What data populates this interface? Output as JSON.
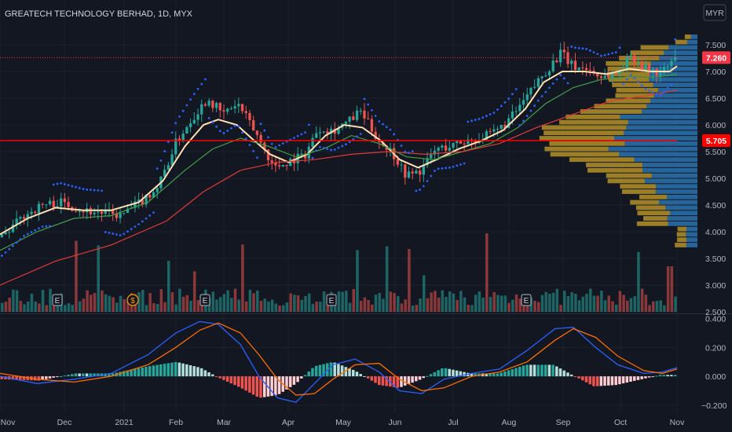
{
  "header": {
    "symbol_title": "GREATECH TECHNOLOGY BERHAD, 1D, MYX",
    "currency": "MYR",
    "gear_icon": "gear-icon"
  },
  "colors": {
    "background": "#131722",
    "grid": "#1e222d",
    "text": "#b2b5be",
    "up": "#26a69a",
    "down": "#ef5350",
    "ma_fast": "#ffe0b2",
    "ma_mid": "#43a047",
    "ma_slow": "#e53935",
    "psar": "#2962ff",
    "vp_up": "#2d7fc1",
    "vp_down": "#c9a227",
    "macd": "#2962ff",
    "signal": "#ff6d00",
    "price_badge": "#f23645",
    "level_line": "#ff0000"
  },
  "chart_data": [
    {
      "type": "candlestick",
      "title": "GREATECH TECHNOLOGY BERHAD, 1D, MYX",
      "ylabel": "MYR",
      "x_ticks": [
        "Nov",
        "Dec",
        "2021",
        "Feb",
        "Mar",
        "Apr",
        "May",
        "Jun",
        "Jul",
        "Aug",
        "Sep",
        "Oct",
        "Nov"
      ],
      "y_ticks": [
        "7.500",
        "7.000",
        "6.500",
        "6.000",
        "5.500",
        "5.000",
        "4.500",
        "4.000",
        "3.500",
        "3.000",
        "2.500"
      ],
      "ylim": [
        2.5,
        7.75
      ],
      "last_price": "7.260",
      "level": "5.705",
      "close_path": [
        [
          0,
          3.9
        ],
        [
          12,
          4.3
        ],
        [
          22,
          4.5
        ],
        [
          32,
          4.55
        ],
        [
          45,
          4.4
        ],
        [
          55,
          4.35
        ],
        [
          65,
          4.3
        ],
        [
          75,
          4.55
        ],
        [
          85,
          4.85
        ],
        [
          95,
          5.7
        ],
        [
          105,
          6.2
        ],
        [
          112,
          6.5
        ],
        [
          120,
          6.2
        ],
        [
          128,
          6.4
        ],
        [
          138,
          5.85
        ],
        [
          148,
          5.2
        ],
        [
          158,
          5.35
        ],
        [
          165,
          5.45
        ],
        [
          172,
          5.95
        ],
        [
          180,
          5.9
        ],
        [
          188,
          6.05
        ],
        [
          195,
          6.25
        ],
        [
          205,
          5.7
        ],
        [
          212,
          5.5
        ],
        [
          220,
          5.05
        ],
        [
          228,
          5.15
        ],
        [
          236,
          5.55
        ],
        [
          244,
          5.6
        ],
        [
          252,
          5.7
        ],
        [
          260,
          5.75
        ],
        [
          268,
          5.85
        ],
        [
          276,
          6.1
        ],
        [
          284,
          6.45
        ],
        [
          292,
          6.85
        ],
        [
          298,
          7.1
        ],
        [
          304,
          7.35
        ],
        [
          310,
          7.1
        ],
        [
          318,
          7.05
        ],
        [
          326,
          6.9
        ],
        [
          334,
          6.95
        ],
        [
          342,
          7.3
        ],
        [
          350,
          7.05
        ],
        [
          358,
          6.95
        ],
        [
          366,
          7.25
        ]
      ],
      "moving_averages": [
        {
          "name": "",
          "points": [
            [
              0,
              3.95
            ],
            [
              15,
              4.25
            ],
            [
              30,
              4.45
            ],
            [
              45,
              4.4
            ],
            [
              60,
              4.4
            ],
            [
              75,
              4.55
            ],
            [
              88,
              4.95
            ],
            [
              100,
              5.6
            ],
            [
              110,
              6.0
            ],
            [
              118,
              6.1
            ],
            [
              128,
              6.0
            ],
            [
              136,
              5.75
            ],
            [
              146,
              5.45
            ],
            [
              156,
              5.3
            ],
            [
              166,
              5.45
            ],
            [
              176,
              5.8
            ],
            [
              186,
              6.0
            ],
            [
              196,
              5.95
            ],
            [
              206,
              5.7
            ],
            [
              216,
              5.35
            ],
            [
              226,
              5.2
            ],
            [
              236,
              5.35
            ],
            [
              248,
              5.55
            ],
            [
              260,
              5.7
            ],
            [
              272,
              5.9
            ],
            [
              284,
              6.3
            ],
            [
              294,
              6.8
            ],
            [
              304,
              7.0
            ],
            [
              316,
              7.0
            ],
            [
              328,
              6.95
            ],
            [
              340,
              7.05
            ],
            [
              352,
              7.0
            ],
            [
              362,
              7.0
            ],
            [
              366,
              7.1
            ]
          ]
        },
        {
          "name": "",
          "points": [
            [
              0,
              3.65
            ],
            [
              20,
              4.0
            ],
            [
              40,
              4.25
            ],
            [
              60,
              4.3
            ],
            [
              80,
              4.55
            ],
            [
              100,
              5.15
            ],
            [
              115,
              5.55
            ],
            [
              130,
              5.75
            ],
            [
              145,
              5.6
            ],
            [
              160,
              5.4
            ],
            [
              175,
              5.55
            ],
            [
              190,
              5.8
            ],
            [
              205,
              5.65
            ],
            [
              220,
              5.4
            ],
            [
              235,
              5.35
            ],
            [
              250,
              5.5
            ],
            [
              265,
              5.65
            ],
            [
              280,
              5.95
            ],
            [
              295,
              6.4
            ],
            [
              310,
              6.7
            ],
            [
              325,
              6.85
            ],
            [
              340,
              6.9
            ],
            [
              355,
              6.9
            ],
            [
              366,
              6.95
            ]
          ]
        },
        {
          "name": "",
          "points": [
            [
              0,
              3.0
            ],
            [
              30,
              3.45
            ],
            [
              60,
              3.75
            ],
            [
              90,
              4.2
            ],
            [
              110,
              4.75
            ],
            [
              130,
              5.15
            ],
            [
              150,
              5.3
            ],
            [
              170,
              5.35
            ],
            [
              190,
              5.45
            ],
            [
              210,
              5.5
            ],
            [
              230,
              5.45
            ],
            [
              250,
              5.5
            ],
            [
              270,
              5.65
            ],
            [
              290,
              5.95
            ],
            [
              310,
              6.2
            ],
            [
              330,
              6.45
            ],
            [
              350,
              6.55
            ],
            [
              366,
              6.65
            ]
          ]
        }
      ]
    },
    {
      "type": "bar",
      "title": "",
      "series": [
        {
          "name": "",
          "note_pct_max": 100
        }
      ],
      "earnings_markers": [
        "E",
        "E",
        "E",
        "E"
      ],
      "dividend_markers": [
        "$"
      ]
    },
    {
      "type": "bar",
      "title": "",
      "y_ticks": [
        "0.400",
        "0.200",
        "0.000",
        "−0.200"
      ],
      "ylim": [
        -0.25,
        0.42
      ],
      "macd_path": [
        [
          0,
          0.0
        ],
        [
          20,
          -0.05
        ],
        [
          40,
          -0.02
        ],
        [
          60,
          0.02
        ],
        [
          80,
          0.15
        ],
        [
          95,
          0.3
        ],
        [
          108,
          0.38
        ],
        [
          118,
          0.36
        ],
        [
          130,
          0.22
        ],
        [
          140,
          0.0
        ],
        [
          150,
          -0.15
        ],
        [
          160,
          -0.18
        ],
        [
          170,
          -0.05
        ],
        [
          180,
          0.08
        ],
        [
          192,
          0.12
        ],
        [
          205,
          0.03
        ],
        [
          216,
          -0.1
        ],
        [
          228,
          -0.12
        ],
        [
          240,
          -0.02
        ],
        [
          255,
          0.02
        ],
        [
          270,
          0.05
        ],
        [
          285,
          0.18
        ],
        [
          300,
          0.33
        ],
        [
          310,
          0.34
        ],
        [
          322,
          0.2
        ],
        [
          334,
          0.08
        ],
        [
          348,
          0.02
        ],
        [
          358,
          0.03
        ],
        [
          366,
          0.06
        ]
      ],
      "signal_path": [
        [
          0,
          0.02
        ],
        [
          20,
          -0.02
        ],
        [
          40,
          -0.04
        ],
        [
          60,
          0.0
        ],
        [
          80,
          0.08
        ],
        [
          95,
          0.2
        ],
        [
          108,
          0.32
        ],
        [
          118,
          0.37
        ],
        [
          130,
          0.3
        ],
        [
          140,
          0.15
        ],
        [
          150,
          -0.02
        ],
        [
          160,
          -0.13
        ],
        [
          170,
          -0.12
        ],
        [
          180,
          -0.02
        ],
        [
          192,
          0.08
        ],
        [
          205,
          0.09
        ],
        [
          216,
          -0.02
        ],
        [
          228,
          -0.1
        ],
        [
          240,
          -0.08
        ],
        [
          255,
          0.0
        ],
        [
          270,
          0.03
        ],
        [
          285,
          0.1
        ],
        [
          300,
          0.25
        ],
        [
          310,
          0.33
        ],
        [
          322,
          0.27
        ],
        [
          334,
          0.14
        ],
        [
          348,
          0.04
        ],
        [
          358,
          0.02
        ],
        [
          366,
          0.05
        ]
      ]
    }
  ]
}
